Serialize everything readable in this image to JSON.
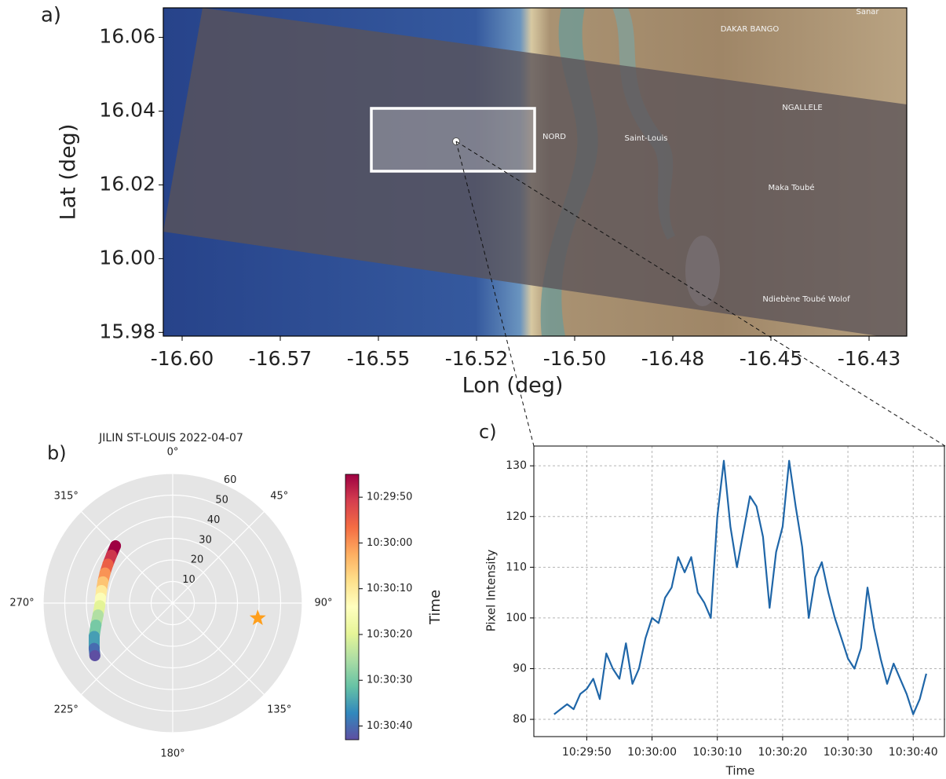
{
  "chart_data": [
    {
      "type": "map",
      "panel_label": "a)",
      "xlabel": "Lon (deg)",
      "ylabel": "Lat (deg)",
      "xlim": [
        -16.6048,
        -16.4154
      ],
      "ylim": [
        15.979,
        16.068
      ],
      "xticks": [
        {
          "value": -16.6,
          "label": "-16.60"
        },
        {
          "value": -16.575,
          "label": "-16.57"
        },
        {
          "value": -16.55,
          "label": "-16.55"
        },
        {
          "value": -16.525,
          "label": "-16.52"
        },
        {
          "value": -16.5,
          "label": "-16.50"
        },
        {
          "value": -16.475,
          "label": "-16.48"
        },
        {
          "value": -16.45,
          "label": "-16.45"
        },
        {
          "value": -16.425,
          "label": "-16.43"
        }
      ],
      "yticks": [
        16.06,
        16.04,
        16.02,
        {
          "value": 16.0,
          "label": "16.00"
        },
        15.98
      ],
      "place_labels": [
        "DAKAR BANGO",
        "NGALLELE",
        "NORD",
        "Saint-Louis",
        "Maka Toubé",
        "Ndiebène Toubé Wolof",
        "Sanar"
      ]
    },
    {
      "type": "polar",
      "panel_label": "b)",
      "title": "JILIN ST-LOUIS 2022-04-07",
      "rlim": [
        0,
        60
      ],
      "rticks": [
        10,
        20,
        30,
        40,
        50,
        60
      ],
      "thetaticks": [
        {
          "value": 0,
          "label": "0°"
        },
        {
          "value": 45,
          "label": "45°"
        },
        {
          "value": 90,
          "label": "90°"
        },
        {
          "value": 135,
          "label": "135°"
        },
        {
          "value": 180,
          "label": "180°"
        },
        {
          "value": 225,
          "label": "225°"
        },
        {
          "value": 270,
          "label": "270°"
        },
        {
          "value": 315,
          "label": "315°"
        }
      ],
      "series": [
        {
          "time": [
            "10:29:45",
            "10:29:50",
            "10:29:55",
            "10:30:00",
            "10:30:05",
            "10:30:10",
            "10:30:15",
            "10:30:20",
            "10:30:25",
            "10:30:30",
            "10:30:35",
            "10:30:40",
            "10:30:43"
          ],
          "theta": [
            315,
            308,
            301,
            294,
            287,
            280,
            274,
            268,
            261,
            254,
            247,
            240,
            236
          ],
          "r": [
            37.5,
            36,
            35,
            34.3,
            33.8,
            33.5,
            33.5,
            33.8,
            35,
            37,
            39.5,
            42,
            43.5
          ]
        }
      ],
      "marker": {
        "theta": 100,
        "r": 40,
        "color": "#ff9f1c"
      },
      "colorbar": {
        "label": "Time",
        "clim": [
          "10:29:45",
          "10:30:43"
        ],
        "colormap": [
          "#9e0142",
          "#d53e4f",
          "#f46d43",
          "#fdae61",
          "#fee08b",
          "#ffffbf",
          "#e6f598",
          "#abdda4",
          "#66c2a5",
          "#3288bd",
          "#5e4fa2"
        ],
        "ticks": [
          "10:29:50",
          "10:30:00",
          "10:30:10",
          "10:30:20",
          "10:30:30",
          "10:30:40"
        ]
      }
    },
    {
      "type": "line",
      "panel_label": "c)",
      "xlabel": "Time",
      "ylabel": "Pixel Intensity",
      "xlim": [
        "10:29:41.9",
        "10:30:44.9"
      ],
      "ylim": [
        76.6,
        133.9
      ],
      "xticks": [
        "10:29:50",
        "10:30:00",
        "10:30:10",
        "10:30:20",
        "10:30:30",
        "10:30:40"
      ],
      "yticks": [
        80,
        90,
        100,
        110,
        120,
        130
      ],
      "grid": true,
      "series": [
        {
          "color": "#1f66a8",
          "x": [
            "10:29:45",
            "10:29:46",
            "10:29:47",
            "10:29:48",
            "10:29:49",
            "10:29:50",
            "10:29:51",
            "10:29:52",
            "10:29:53",
            "10:29:54",
            "10:29:55",
            "10:29:56",
            "10:29:57",
            "10:29:58",
            "10:29:59",
            "10:30:00",
            "10:30:01",
            "10:30:02",
            "10:30:03",
            "10:30:04",
            "10:30:05",
            "10:30:06",
            "10:30:07",
            "10:30:08",
            "10:30:09",
            "10:30:10",
            "10:30:11",
            "10:30:12",
            "10:30:13",
            "10:30:14",
            "10:30:15",
            "10:30:16",
            "10:30:17",
            "10:30:18",
            "10:30:19",
            "10:30:20",
            "10:30:21",
            "10:30:22",
            "10:30:23",
            "10:30:24",
            "10:30:25",
            "10:30:26",
            "10:30:27",
            "10:30:28",
            "10:30:29",
            "10:30:30",
            "10:30:31",
            "10:30:32",
            "10:30:33",
            "10:30:34",
            "10:30:35",
            "10:30:36",
            "10:30:37",
            "10:30:38",
            "10:30:39",
            "10:30:40",
            "10:30:41",
            "10:30:42"
          ],
          "values": [
            81,
            82,
            83,
            82,
            85,
            86,
            88,
            84,
            93,
            90,
            88,
            95,
            87,
            90,
            96,
            100,
            99,
            104,
            106,
            112,
            109,
            112,
            105,
            103,
            100,
            120,
            131,
            118,
            110,
            117,
            124,
            122,
            116,
            102,
            113,
            118,
            131,
            122,
            114,
            100,
            108,
            111,
            105,
            100,
            96,
            92,
            90,
            94,
            106,
            98,
            92,
            87,
            91,
            88,
            85,
            81,
            84,
            89
          ]
        }
      ]
    }
  ]
}
